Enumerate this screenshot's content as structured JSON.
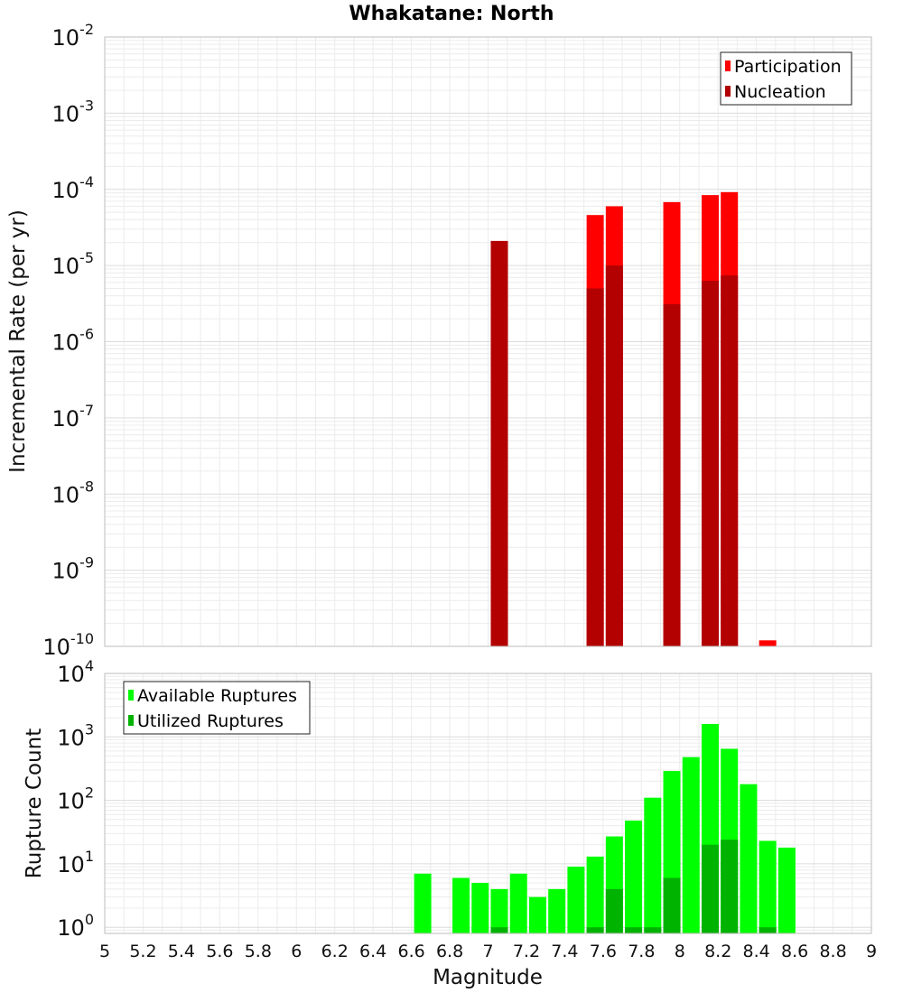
{
  "title": "Whakatane: North",
  "colors": {
    "participation": "#ff0000",
    "nucleation": "#b30000",
    "available": "#00ff00",
    "utilized": "#00b300"
  },
  "chart_data": [
    {
      "type": "bar",
      "title": "Whakatane: North",
      "ylabel": "Incremental Rate (per yr)",
      "xlabel": "",
      "scale_y": "log",
      "xlim": [
        5,
        9
      ],
      "ylim": [
        1e-10,
        0.01
      ],
      "y_tick_exponents": [
        -10,
        -9,
        -8,
        -7,
        -6,
        -5,
        -4,
        -3,
        -2
      ],
      "legend": {
        "position": "top-right",
        "entries": [
          "Participation",
          "Nucleation"
        ]
      },
      "grid": true,
      "series": [
        {
          "name": "Participation",
          "x": [
            7.0,
            7.5,
            7.6,
            7.9,
            8.1,
            8.2,
            8.4
          ],
          "values": [
            2.1e-05,
            4.6e-05,
            6e-05,
            6.8e-05,
            8.4e-05,
            9.2e-05,
            1.2e-10
          ]
        },
        {
          "name": "Nucleation",
          "x": [
            7.0,
            7.5,
            7.6,
            7.9,
            8.1,
            8.2
          ],
          "values": [
            2.1e-05,
            5e-06,
            1e-05,
            3.1e-06,
            6.3e-06,
            7.4e-06
          ]
        }
      ]
    },
    {
      "type": "bar",
      "title": "",
      "ylabel": "Rupture Count",
      "xlabel": "Magnitude",
      "scale_y": "log",
      "xlim": [
        5,
        9
      ],
      "ylim": [
        0.8,
        10000
      ],
      "y_tick_exponents": [
        0,
        1,
        2,
        3,
        4
      ],
      "x_ticks": [
        "5",
        "5.2",
        "5.4",
        "5.6",
        "5.8",
        "6",
        "6.2",
        "6.4",
        "6.6",
        "6.8",
        "7",
        "7.2",
        "7.4",
        "7.6",
        "7.8",
        "8",
        "8.2",
        "8.4",
        "8.6",
        "8.8",
        "9"
      ],
      "legend": {
        "position": "top-left",
        "entries": [
          "Available Ruptures",
          "Utilized Ruptures"
        ]
      },
      "grid": true,
      "series": [
        {
          "name": "Available Ruptures",
          "x": [
            6.6,
            6.8,
            6.9,
            7.0,
            7.1,
            7.2,
            7.3,
            7.4,
            7.5,
            7.6,
            7.7,
            7.8,
            7.9,
            8.0,
            8.1,
            8.2,
            8.3,
            8.4,
            8.5
          ],
          "values": [
            7,
            6,
            5,
            4,
            7,
            3,
            4,
            9,
            13,
            27,
            48,
            110,
            290,
            480,
            1600,
            650,
            180,
            23,
            18
          ]
        },
        {
          "name": "Utilized Ruptures",
          "x": [
            7.0,
            7.5,
            7.6,
            7.7,
            7.8,
            7.9,
            8.1,
            8.2,
            8.4
          ],
          "values": [
            1,
            1,
            4,
            1,
            1,
            6,
            20,
            24,
            1
          ]
        }
      ]
    }
  ]
}
